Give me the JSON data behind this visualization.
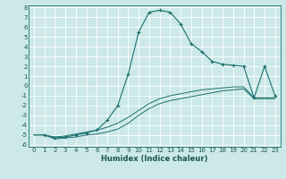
{
  "xlabel": "Humidex (Indice chaleur)",
  "bg_color": "#cce8e8",
  "grid_color": "#ffffff",
  "line_color": "#1a7070",
  "xlim": [
    -0.5,
    23.5
  ],
  "ylim": [
    -6.2,
    8.2
  ],
  "xtick_vals": [
    0,
    1,
    2,
    3,
    4,
    5,
    6,
    7,
    8,
    9,
    10,
    11,
    12,
    13,
    14,
    15,
    16,
    17,
    18,
    19,
    20,
    21,
    22,
    23
  ],
  "ytick_vals": [
    -6,
    -5,
    -4,
    -3,
    -2,
    -1,
    0,
    1,
    2,
    3,
    4,
    5,
    6,
    7,
    8
  ],
  "series": [
    {
      "x": [
        0,
        1,
        2,
        3,
        4,
        5,
        6,
        7,
        8,
        9,
        10,
        11,
        12,
        13,
        14,
        15,
        16,
        17,
        18,
        19,
        20,
        21,
        22,
        23
      ],
      "y": [
        -5.0,
        -5.0,
        -5.2,
        -5.1,
        -4.9,
        -4.7,
        -4.5,
        -4.2,
        -3.8,
        -3.2,
        -2.5,
        -1.8,
        -1.3,
        -1.0,
        -0.8,
        -0.6,
        -0.4,
        -0.3,
        -0.2,
        -0.1,
        -0.1,
        -1.2,
        -1.2,
        -1.2
      ],
      "style": "line_only"
    },
    {
      "x": [
        0,
        1,
        2,
        3,
        4,
        5,
        6,
        7,
        8,
        9,
        10,
        11,
        12,
        13,
        14,
        15,
        16,
        17,
        18,
        19,
        20,
        21,
        22,
        23
      ],
      "y": [
        -5.0,
        -5.0,
        -5.4,
        -5.3,
        -5.2,
        -5.0,
        -4.9,
        -4.7,
        -4.4,
        -3.8,
        -3.0,
        -2.3,
        -1.8,
        -1.5,
        -1.3,
        -1.1,
        -0.9,
        -0.7,
        -0.5,
        -0.4,
        -0.3,
        -1.3,
        -1.3,
        -1.3
      ],
      "style": "line_only"
    },
    {
      "x": [
        1,
        2,
        3,
        4,
        5,
        6,
        7,
        8,
        9,
        10,
        11,
        12,
        13,
        14,
        15,
        16,
        17,
        18,
        19,
        20,
        21,
        22,
        23
      ],
      "y": [
        -5.0,
        -5.3,
        -5.2,
        -5.0,
        -4.8,
        -4.5,
        -3.5,
        -2.0,
        1.2,
        5.5,
        7.5,
        7.7,
        7.5,
        6.3,
        4.3,
        3.5,
        2.5,
        2.2,
        2.1,
        2.0,
        -1.2,
        2.0,
        -1.0
      ],
      "style": "line_marker"
    }
  ],
  "tick_fontsize": 5,
  "xlabel_fontsize": 6,
  "lw_plain": 0.7,
  "lw_marker": 0.8
}
